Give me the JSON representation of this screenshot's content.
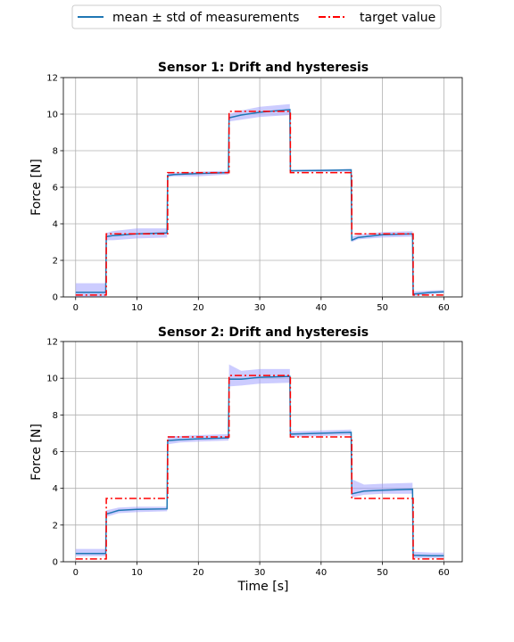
{
  "legend": {
    "placement": "top-center",
    "entries": [
      {
        "label": "mean ± std of measurements",
        "color": "#1f77b4",
        "style": "solid"
      },
      {
        "label": "target value",
        "color": "#ff0000",
        "style": "dashdot"
      }
    ]
  },
  "colors": {
    "band": "#9999ff",
    "mean": "#1f77b4",
    "target": "#ff0000",
    "grid": "#b0b0b0"
  },
  "chart_data": [
    {
      "type": "line",
      "title": "Sensor 1: Drift and hysteresis",
      "xlabel": "",
      "ylabel": "Force [N]",
      "xlim": [
        -2,
        63
      ],
      "ylim": [
        0,
        12
      ],
      "xticks": [
        "0",
        "10",
        "20",
        "30",
        "40",
        "50",
        "60"
      ],
      "yticks": [
        "0",
        "2",
        "4",
        "6",
        "8",
        "10",
        "12"
      ],
      "grid": true,
      "series": [
        {
          "name": "target value",
          "x": [
            0,
            5,
            5,
            15,
            15,
            25,
            25,
            35,
            35,
            45,
            45,
            55,
            55,
            60
          ],
          "y": [
            0.1,
            0.1,
            3.45,
            3.45,
            6.8,
            6.8,
            10.15,
            10.15,
            6.8,
            6.8,
            3.45,
            3.45,
            0.1,
            0.1
          ]
        },
        {
          "name": "mean ± std of measurements",
          "x": [
            0,
            4.9,
            5,
            6,
            10,
            14.9,
            15,
            16,
            20,
            24.9,
            25,
            27,
            30,
            34.9,
            35,
            40,
            44.9,
            45,
            46,
            50,
            54.9,
            55,
            58,
            60
          ],
          "y": [
            0.25,
            0.25,
            3.3,
            3.35,
            3.45,
            3.5,
            6.65,
            6.7,
            6.75,
            6.8,
            9.8,
            9.95,
            10.1,
            10.25,
            6.9,
            6.92,
            6.95,
            3.1,
            3.25,
            3.4,
            3.45,
            0.15,
            0.25,
            0.28
          ],
          "lower": [
            0.0,
            0.0,
            3.1,
            3.1,
            3.2,
            3.25,
            6.55,
            6.6,
            6.6,
            6.7,
            9.6,
            9.7,
            9.85,
            9.95,
            6.85,
            6.85,
            6.85,
            3.0,
            3.15,
            3.25,
            3.3,
            0.05,
            0.15,
            0.2
          ],
          "upper": [
            0.75,
            0.75,
            3.5,
            3.6,
            3.75,
            3.75,
            6.8,
            6.8,
            6.85,
            6.9,
            10.0,
            10.2,
            10.4,
            10.55,
            6.95,
            6.97,
            7.0,
            3.3,
            3.4,
            3.55,
            3.6,
            0.3,
            0.35,
            0.38
          ]
        }
      ]
    },
    {
      "type": "line",
      "title": "Sensor 2: Drift and hysteresis",
      "xlabel": "Time [s]",
      "ylabel": "Force [N]",
      "xlim": [
        -2,
        63
      ],
      "ylim": [
        0,
        12
      ],
      "xticks": [
        "0",
        "10",
        "20",
        "30",
        "40",
        "50",
        "60"
      ],
      "yticks": [
        "0",
        "2",
        "4",
        "6",
        "8",
        "10",
        "12"
      ],
      "grid": true,
      "series": [
        {
          "name": "target value",
          "x": [
            0,
            5,
            5,
            15,
            15,
            25,
            25,
            35,
            35,
            45,
            45,
            55,
            55,
            60
          ],
          "y": [
            0.15,
            0.15,
            3.45,
            3.45,
            6.8,
            6.8,
            10.15,
            10.15,
            6.8,
            6.8,
            3.45,
            3.45,
            0.15,
            0.15
          ]
        },
        {
          "name": "mean ± std of measurements",
          "x": [
            0,
            4.9,
            5,
            7,
            10,
            14.9,
            15,
            17,
            20,
            24.9,
            25,
            27,
            30,
            34.9,
            35,
            40,
            44.9,
            45,
            47,
            50,
            54.9,
            55,
            58,
            60
          ],
          "y": [
            0.45,
            0.45,
            2.6,
            2.8,
            2.85,
            2.88,
            6.6,
            6.65,
            6.7,
            6.75,
            9.95,
            9.95,
            10.05,
            10.1,
            6.95,
            7.0,
            7.05,
            3.7,
            3.85,
            3.9,
            3.95,
            0.35,
            0.33,
            0.33
          ],
          "lower": [
            0.3,
            0.3,
            2.45,
            2.65,
            2.7,
            2.75,
            6.4,
            6.5,
            6.55,
            6.6,
            9.55,
            9.6,
            9.7,
            9.75,
            6.8,
            6.85,
            6.9,
            3.5,
            3.65,
            3.7,
            3.7,
            0.2,
            0.2,
            0.2
          ],
          "upper": [
            0.7,
            0.7,
            2.8,
            2.95,
            3.0,
            3.0,
            6.85,
            6.85,
            6.9,
            6.95,
            10.75,
            10.4,
            10.5,
            10.5,
            7.1,
            7.15,
            7.2,
            4.5,
            4.2,
            4.25,
            4.3,
            0.55,
            0.5,
            0.5
          ]
        }
      ]
    }
  ]
}
